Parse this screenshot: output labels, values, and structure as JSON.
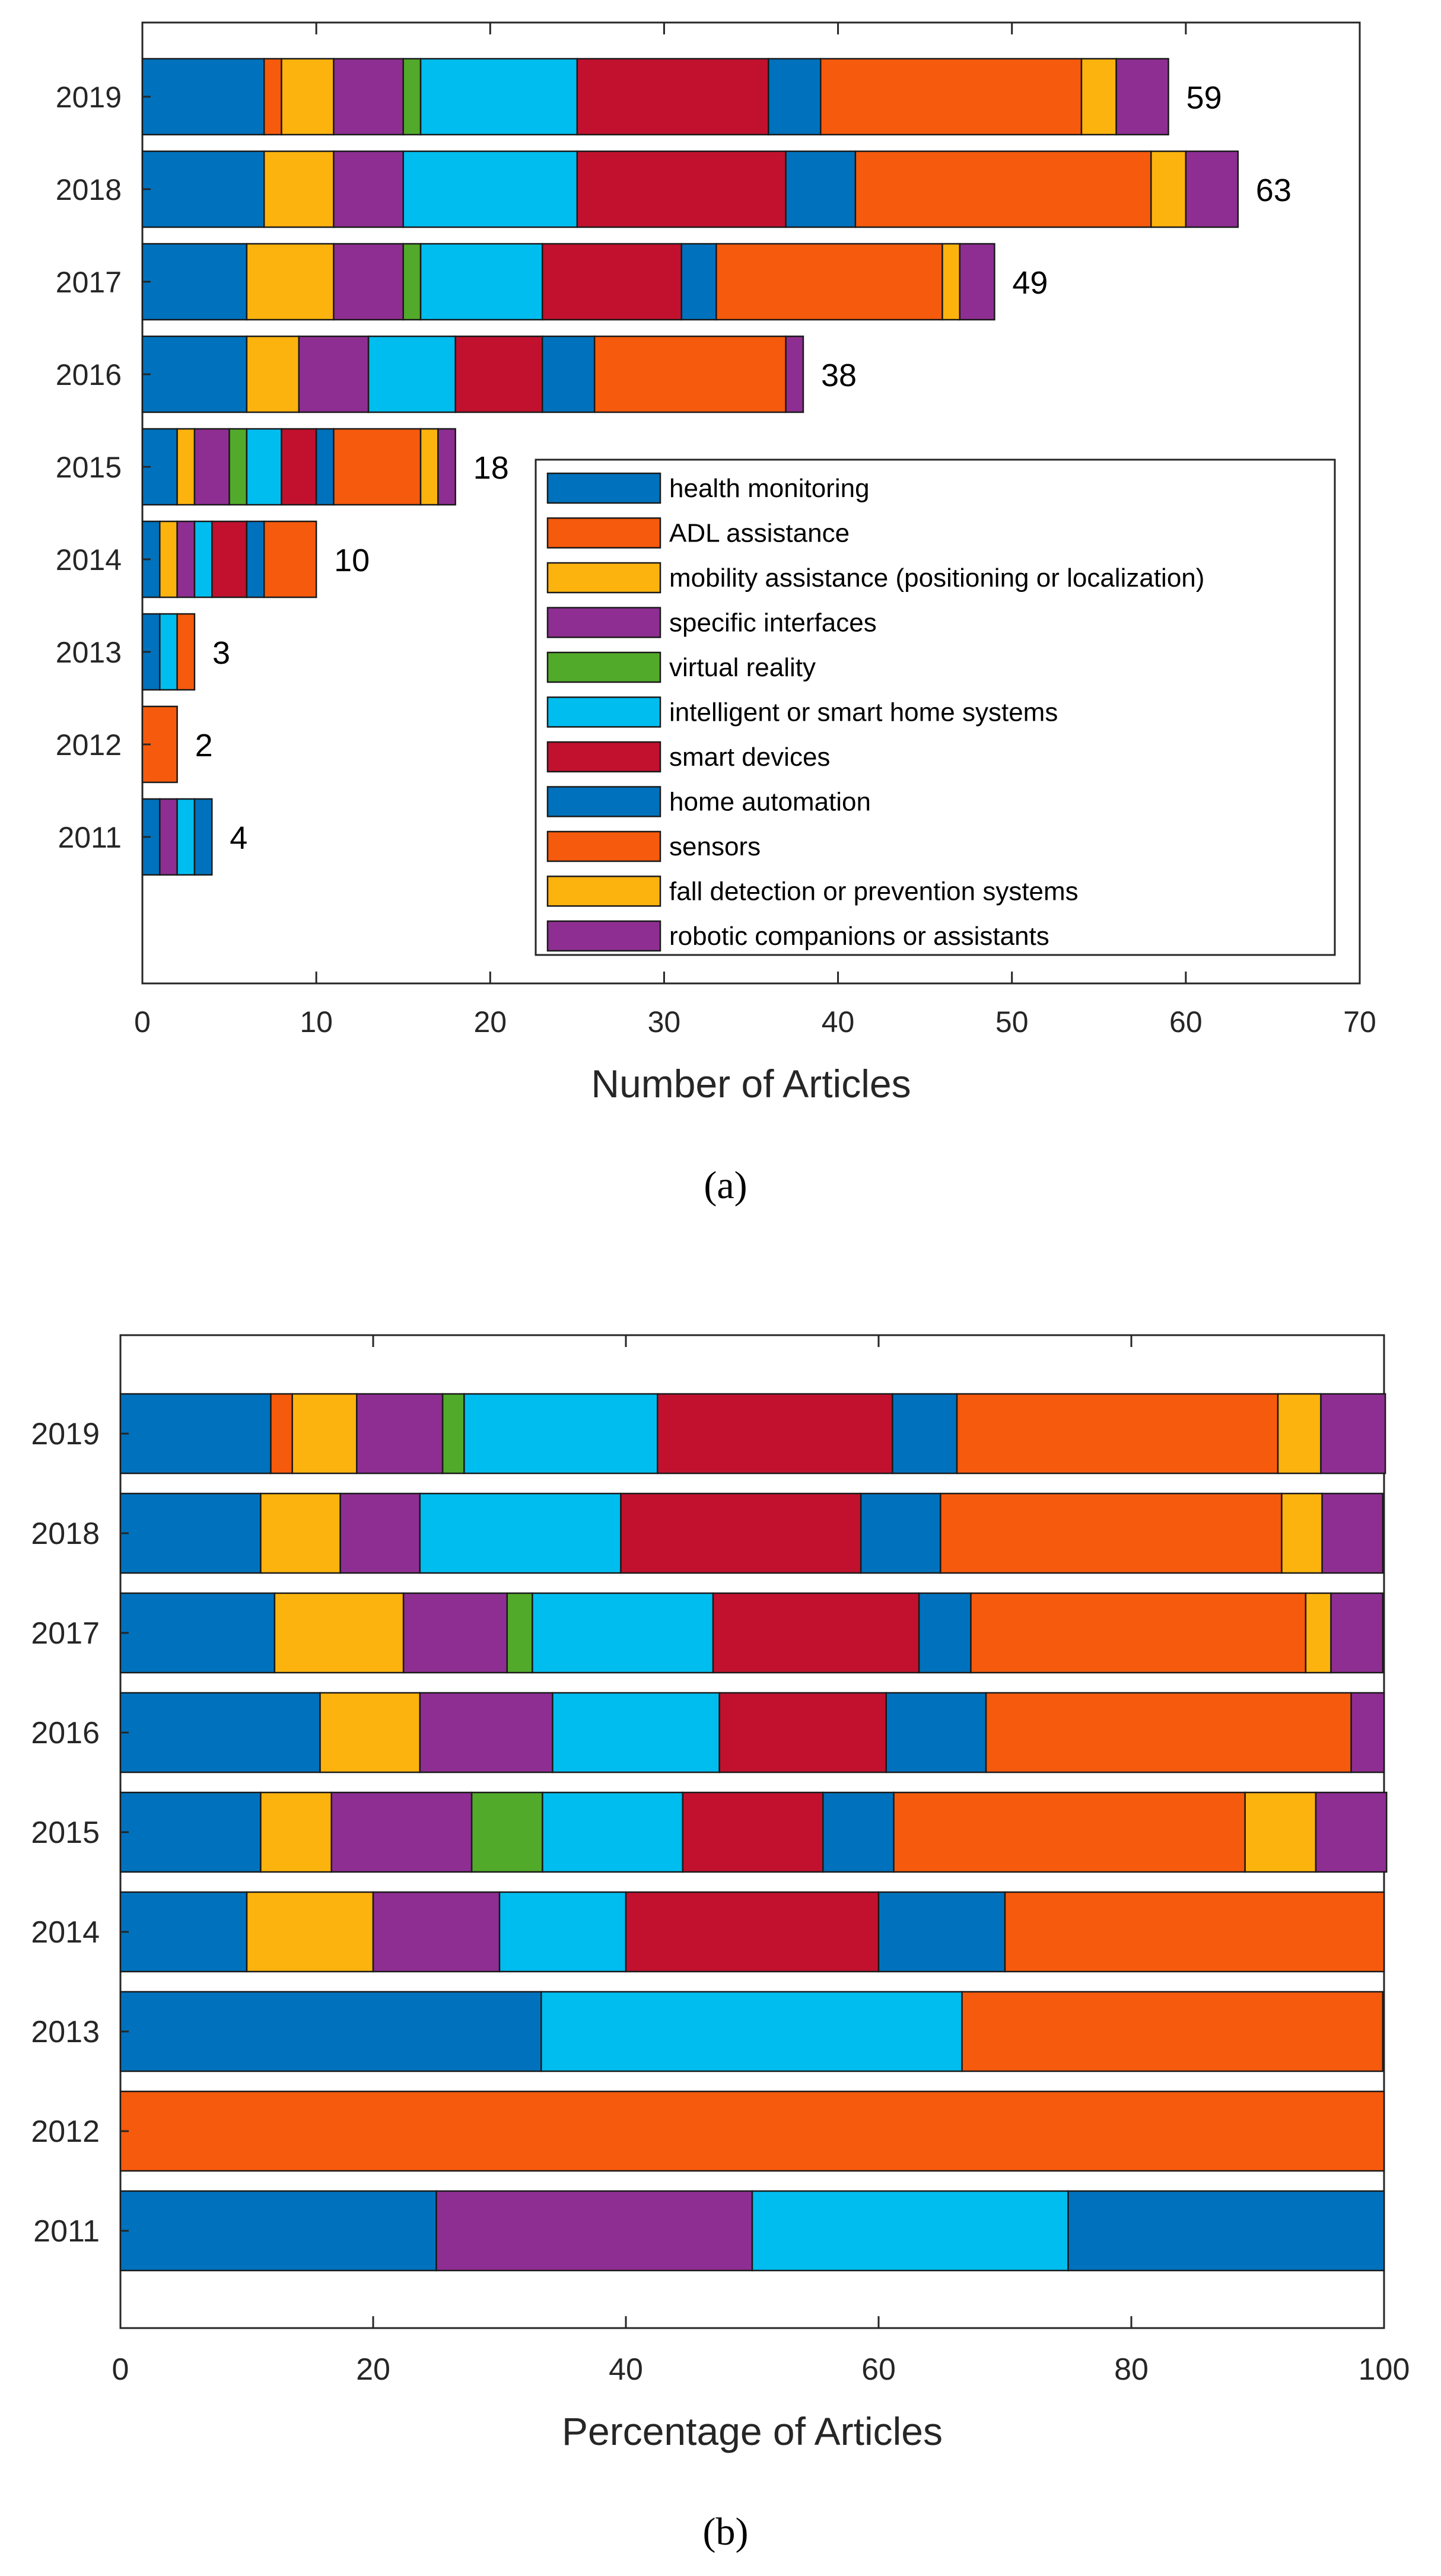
{
  "colors": {
    "health monitoring": "#0072BD",
    "ADL assistance": "#F65A0C",
    "mobility assistance (positioning or localization)": "#FDB30E",
    "specific interfaces": "#8E2E92",
    "virtual reality": "#52AA2A",
    "intelligent or smart home systems": "#00BDEF",
    "smart devices": "#C1112E",
    "home automation": "#0072BD",
    "sensors": "#F65A0C",
    "fall detection or prevention systems": "#FDB30E",
    "robotic companions or assistants": "#8E2E92"
  },
  "chart_data": [
    {
      "type": "bar",
      "orientation": "horizontal",
      "stacked": true,
      "panel_label": "(a)",
      "title": "",
      "xlabel": "Number of Articles",
      "ylabel": "",
      "xlim": [
        0,
        70
      ],
      "xticks": [
        "0",
        "10",
        "20",
        "30",
        "40",
        "50",
        "60",
        "70"
      ],
      "xtick_values": [
        0,
        10,
        20,
        30,
        40,
        50,
        60,
        70
      ],
      "grid": false,
      "legend_placement": "bottom-right inside",
      "legend": [
        "health monitoring",
        "ADL assistance",
        "mobility assistance (positioning or localization)",
        "specific interfaces",
        "virtual reality",
        "intelligent or smart home systems",
        "smart devices",
        "home automation",
        "sensors",
        "fall detection or prevention systems",
        "robotic companions or assistants"
      ],
      "segment_order": [
        "health monitoring",
        "ADL assistance",
        "mobility assistance (positioning or localization)",
        "specific interfaces",
        "virtual reality",
        "intelligent or smart home systems",
        "smart devices",
        "home automation",
        "sensors",
        "fall detection or prevention systems",
        "robotic companions or assistants"
      ],
      "categories": [
        "2019",
        "2018",
        "2017",
        "2016",
        "2015",
        "2014",
        "2013",
        "2012",
        "2011"
      ],
      "values": [
        [
          7,
          1,
          3,
          4,
          1,
          9,
          11,
          3,
          15,
          2,
          3
        ],
        [
          7,
          0,
          4,
          4,
          0,
          10,
          12,
          4,
          17,
          2,
          3
        ],
        [
          6,
          0,
          5,
          4,
          1,
          7,
          8,
          2,
          13,
          1,
          2
        ],
        [
          6,
          0,
          3,
          4,
          0,
          5,
          5,
          3,
          11,
          0,
          1
        ],
        [
          2,
          0,
          1,
          2,
          1,
          2,
          2,
          1,
          5,
          1,
          1
        ],
        [
          1,
          0,
          1,
          1,
          0,
          1,
          2,
          1,
          3,
          0,
          0
        ],
        [
          1,
          0,
          0,
          0,
          0,
          1,
          0,
          0,
          1,
          0,
          0
        ],
        [
          0,
          0,
          0,
          0,
          0,
          0,
          0,
          0,
          2,
          0,
          0
        ],
        [
          1,
          0,
          0,
          1,
          0,
          1,
          0,
          1,
          0,
          0,
          0
        ]
      ],
      "total_labels": [
        "59",
        "63",
        "49",
        "38",
        "18",
        "10",
        "3",
        "2",
        "4"
      ]
    },
    {
      "type": "bar",
      "orientation": "horizontal",
      "stacked": true,
      "panel_label": "(b)",
      "title": "",
      "xlabel": "Percentage of Articles",
      "ylabel": "",
      "xlim": [
        0,
        100
      ],
      "xticks": [
        "0",
        "20",
        "40",
        "60",
        "80",
        "100"
      ],
      "xtick_values": [
        0,
        20,
        40,
        60,
        80,
        100
      ],
      "grid": false,
      "segment_order": [
        "health monitoring",
        "ADL assistance",
        "mobility assistance (positioning or localization)",
        "specific interfaces",
        "virtual reality",
        "intelligent or smart home systems",
        "smart devices",
        "home automation",
        "sensors",
        "fall detection or prevention systems",
        "robotic companions or assistants"
      ],
      "categories": [
        "2019",
        "2018",
        "2017",
        "2016",
        "2015",
        "2014",
        "2013",
        "2012",
        "2011"
      ],
      "values": [
        [
          11.9,
          1.7,
          5.1,
          6.8,
          1.7,
          15.3,
          18.6,
          5.1,
          25.4,
          3.4,
          5.1
        ],
        [
          11.1,
          0,
          6.3,
          6.3,
          0,
          15.9,
          19.0,
          6.3,
          27.0,
          3.2,
          4.8
        ],
        [
          12.2,
          0,
          10.2,
          8.2,
          2.0,
          14.3,
          16.3,
          4.1,
          26.5,
          2.0,
          4.1
        ],
        [
          15.8,
          0,
          7.9,
          10.5,
          0,
          13.2,
          13.2,
          7.9,
          28.9,
          0,
          2.6
        ],
        [
          11.1,
          0,
          5.6,
          11.1,
          5.6,
          11.1,
          11.1,
          5.6,
          27.8,
          5.6,
          5.6
        ],
        [
          10,
          0,
          10,
          10,
          0,
          10,
          20,
          10,
          30,
          0,
          0
        ],
        [
          33.3,
          0,
          0,
          0,
          0,
          33.3,
          0,
          0,
          33.3,
          0,
          0
        ],
        [
          0,
          0,
          0,
          0,
          0,
          0,
          0,
          0,
          100,
          0,
          0
        ],
        [
          25,
          0,
          0,
          25,
          0,
          25,
          0,
          25,
          0,
          0,
          0
        ]
      ]
    }
  ]
}
